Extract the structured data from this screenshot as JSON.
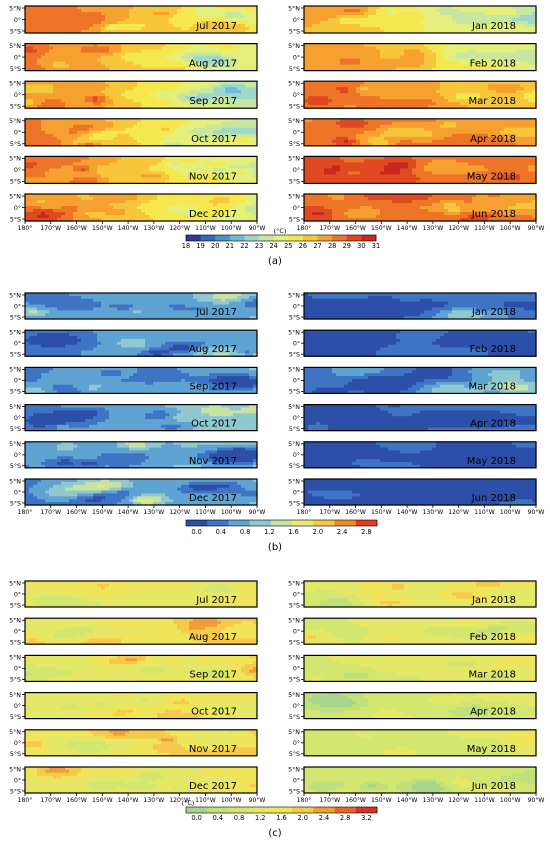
{
  "figure": {
    "lat_ticks": [
      "5°N",
      "0°",
      "5°S"
    ],
    "lon_ticks": [
      "180°",
      "170°W",
      "160°W",
      "150°W",
      "140°W",
      "130°W",
      "120°W",
      "110°W",
      "100°W",
      "90°W"
    ],
    "unit": "(°C)",
    "panels": [
      {
        "label": "(a)",
        "colorbar": {
          "ticks": [
            "18",
            "19",
            "20",
            "21",
            "22",
            "23",
            "24",
            "25",
            "26",
            "27",
            "28",
            "29",
            "30",
            "31"
          ],
          "colors": [
            "#2b3c9e",
            "#3a68b8",
            "#4f91c9",
            "#6fbcd9",
            "#9fd8c9",
            "#c7e6a0",
            "#e3ef78",
            "#f5e84e",
            "#f8c63a",
            "#f5a02f",
            "#ee7428",
            "#e04a22",
            "#c8261e"
          ]
        },
        "maps": [
          {
            "month": "Jul 2017",
            "palette": "sst",
            "base": 0.82,
            "gradient": -0.25,
            "noise": 0.16,
            "seed": 11
          },
          {
            "month": "Aug 2017",
            "palette": "sst",
            "base": 0.8,
            "gradient": -0.3,
            "noise": 0.16,
            "seed": 12
          },
          {
            "month": "Sep 2017",
            "palette": "sst",
            "base": 0.78,
            "gradient": -0.35,
            "noise": 0.16,
            "seed": 13
          },
          {
            "month": "Oct 2017",
            "palette": "sst",
            "base": 0.79,
            "gradient": -0.35,
            "noise": 0.16,
            "seed": 14
          },
          {
            "month": "Nov 2017",
            "palette": "sst",
            "base": 0.8,
            "gradient": -0.33,
            "noise": 0.16,
            "seed": 15
          },
          {
            "month": "Dec 2017",
            "palette": "sst",
            "base": 0.78,
            "gradient": -0.3,
            "noise": 0.15,
            "seed": 16
          },
          {
            "month": "Jan 2018",
            "palette": "sst",
            "base": 0.72,
            "gradient": -0.3,
            "noise": 0.15,
            "seed": 17
          },
          {
            "month": "Feb 2018",
            "palette": "sst",
            "base": 0.74,
            "gradient": -0.25,
            "noise": 0.14,
            "seed": 18
          },
          {
            "month": "Mar 2018",
            "palette": "sst",
            "base": 0.78,
            "gradient": -0.15,
            "noise": 0.14,
            "seed": 19
          },
          {
            "month": "Apr 2018",
            "palette": "sst",
            "base": 0.84,
            "gradient": -0.1,
            "noise": 0.13,
            "seed": 20
          },
          {
            "month": "May 2018",
            "palette": "sst",
            "base": 0.88,
            "gradient": -0.08,
            "noise": 0.12,
            "seed": 21
          },
          {
            "month": "Jun 2018",
            "palette": "sst",
            "base": 0.88,
            "gradient": -0.1,
            "noise": 0.12,
            "seed": 22
          }
        ]
      },
      {
        "label": "(b)",
        "colorbar": {
          "ticks": [
            "0.0",
            "0.4",
            "0.8",
            "1.2",
            "1.6",
            "2.0",
            "2.4",
            "2.8"
          ],
          "colors": [
            "#2c4fa8",
            "#3f74c4",
            "#5fa3d3",
            "#8fc8cf",
            "#c6e3a4",
            "#e8ea74",
            "#f6c746",
            "#ef8a2c",
            "#de3d24"
          ]
        },
        "maps": [
          {
            "month": "Jul 2017",
            "palette": "err",
            "base": 0.22,
            "gradient": 0.12,
            "noise": 0.22,
            "seed": 31
          },
          {
            "month": "Aug 2017",
            "palette": "err",
            "base": 0.18,
            "gradient": 0.15,
            "noise": 0.22,
            "seed": 32
          },
          {
            "month": "Sep 2017",
            "palette": "err",
            "base": 0.2,
            "gradient": 0.15,
            "noise": 0.22,
            "seed": 33
          },
          {
            "month": "Oct 2017",
            "palette": "err",
            "base": 0.22,
            "gradient": 0.2,
            "noise": 0.24,
            "seed": 34
          },
          {
            "month": "Nov 2017",
            "palette": "err",
            "base": 0.22,
            "gradient": 0.18,
            "noise": 0.24,
            "seed": 35
          },
          {
            "month": "Dec 2017",
            "palette": "err",
            "base": 0.18,
            "gradient": 0.16,
            "noise": 0.22,
            "seed": 36
          },
          {
            "month": "Jan 2018",
            "palette": "err",
            "base": 0.1,
            "gradient": 0.08,
            "noise": 0.18,
            "seed": 37
          },
          {
            "month": "Feb 2018",
            "palette": "err",
            "base": 0.08,
            "gradient": 0.06,
            "noise": 0.16,
            "seed": 38
          },
          {
            "month": "Mar 2018",
            "palette": "err",
            "base": 0.12,
            "gradient": 0.14,
            "noise": 0.2,
            "seed": 39
          },
          {
            "month": "Apr 2018",
            "palette": "err",
            "base": 0.08,
            "gradient": 0.06,
            "noise": 0.16,
            "seed": 40
          },
          {
            "month": "May 2018",
            "palette": "err",
            "base": 0.06,
            "gradient": 0.05,
            "noise": 0.14,
            "seed": 41
          },
          {
            "month": "Jun 2018",
            "palette": "err",
            "base": 0.05,
            "gradient": 0.04,
            "noise": 0.14,
            "seed": 42
          }
        ]
      },
      {
        "label": "(c)",
        "colorbar": {
          "ticks": [
            "0.0",
            "0.4",
            "0.8",
            "1.2",
            "1.6",
            "2.0",
            "2.4",
            "2.8",
            "3.2"
          ],
          "colors": [
            "#a7d58a",
            "#bfe07c",
            "#d3e670",
            "#e4e866",
            "#f0e45a",
            "#f5c94a",
            "#f19e39",
            "#e8652a",
            "#d9301f"
          ]
        },
        "maps": [
          {
            "month": "Jul 2017",
            "palette": "std",
            "base": 0.38,
            "gradient": 0.12,
            "noise": 0.22,
            "seed": 51
          },
          {
            "month": "Aug 2017",
            "palette": "std",
            "base": 0.42,
            "gradient": 0.16,
            "noise": 0.26,
            "seed": 52
          },
          {
            "month": "Sep 2017",
            "palette": "std",
            "base": 0.4,
            "gradient": 0.16,
            "noise": 0.26,
            "seed": 53
          },
          {
            "month": "Oct 2017",
            "palette": "std",
            "base": 0.38,
            "gradient": 0.18,
            "noise": 0.24,
            "seed": 54
          },
          {
            "month": "Nov 2017",
            "palette": "std",
            "base": 0.44,
            "gradient": 0.18,
            "noise": 0.28,
            "seed": 55
          },
          {
            "month": "Dec 2017",
            "palette": "std",
            "base": 0.38,
            "gradient": 0.15,
            "noise": 0.24,
            "seed": 56
          },
          {
            "month": "Jan 2018",
            "palette": "std",
            "base": 0.34,
            "gradient": 0.1,
            "noise": 0.22,
            "seed": 57
          },
          {
            "month": "Feb 2018",
            "palette": "std",
            "base": 0.3,
            "gradient": 0.1,
            "noise": 0.2,
            "seed": 58
          },
          {
            "month": "Mar 2018",
            "palette": "std",
            "base": 0.32,
            "gradient": 0.16,
            "noise": 0.22,
            "seed": 59
          },
          {
            "month": "Apr 2018",
            "palette": "std",
            "base": 0.26,
            "gradient": 0.08,
            "noise": 0.18,
            "seed": 60
          },
          {
            "month": "May 2018",
            "palette": "std",
            "base": 0.24,
            "gradient": 0.06,
            "noise": 0.18,
            "seed": 61
          },
          {
            "month": "Jun 2018",
            "palette": "std",
            "base": 0.24,
            "gradient": 0.06,
            "noise": 0.18,
            "seed": 62
          }
        ]
      }
    ]
  },
  "chart_data": [
    {
      "type": "heatmap",
      "title": "",
      "xlabel": "",
      "ylabel": "",
      "x_ticks": [
        "180°",
        "170°W",
        "160°W",
        "150°W",
        "140°W",
        "130°W",
        "120°W",
        "110°W",
        "100°W",
        "90°W"
      ],
      "y_ticks": [
        "5°N",
        "0°",
        "5°S"
      ],
      "panels": [
        "Jul 2017",
        "Aug 2017",
        "Sep 2017",
        "Oct 2017",
        "Nov 2017",
        "Dec 2017",
        "Jan 2018",
        "Feb 2018",
        "Mar 2018",
        "Apr 2018",
        "May 2018",
        "Jun 2018"
      ],
      "colorbar_ticks": [
        18,
        19,
        20,
        21,
        22,
        23,
        24,
        25,
        26,
        27,
        28,
        29,
        30,
        31
      ],
      "colorbar_label": "(°C)"
    },
    {
      "type": "heatmap",
      "title": "",
      "xlabel": "",
      "ylabel": "",
      "x_ticks": [
        "180°",
        "170°W",
        "160°W",
        "150°W",
        "140°W",
        "130°W",
        "120°W",
        "110°W",
        "100°W",
        "90°W"
      ],
      "y_ticks": [
        "5°N",
        "0°",
        "5°S"
      ],
      "panels": [
        "Jul 2017",
        "Aug 2017",
        "Sep 2017",
        "Oct 2017",
        "Nov 2017",
        "Dec 2017",
        "Jan 2018",
        "Feb 2018",
        "Mar 2018",
        "Apr 2018",
        "May 2018",
        "Jun 2018"
      ],
      "colorbar_ticks": [
        0.0,
        0.4,
        0.8,
        1.2,
        1.6,
        2.0,
        2.4,
        2.8
      ],
      "colorbar_label": ""
    },
    {
      "type": "heatmap",
      "title": "",
      "xlabel": "",
      "ylabel": "",
      "x_ticks": [
        "180°",
        "170°W",
        "160°W",
        "150°W",
        "140°W",
        "130°W",
        "120°W",
        "110°W",
        "100°W",
        "90°W"
      ],
      "y_ticks": [
        "5°N",
        "0°",
        "5°S"
      ],
      "panels": [
        "Jul 2017",
        "Aug 2017",
        "Sep 2017",
        "Oct 2017",
        "Nov 2017",
        "Dec 2017",
        "Jan 2018",
        "Feb 2018",
        "Mar 2018",
        "Apr 2018",
        "May 2018",
        "Jun 2018"
      ],
      "colorbar_ticks": [
        0.0,
        0.4,
        0.8,
        1.2,
        1.6,
        2.0,
        2.4,
        2.8,
        3.2
      ],
      "colorbar_label": "(°C)"
    }
  ]
}
